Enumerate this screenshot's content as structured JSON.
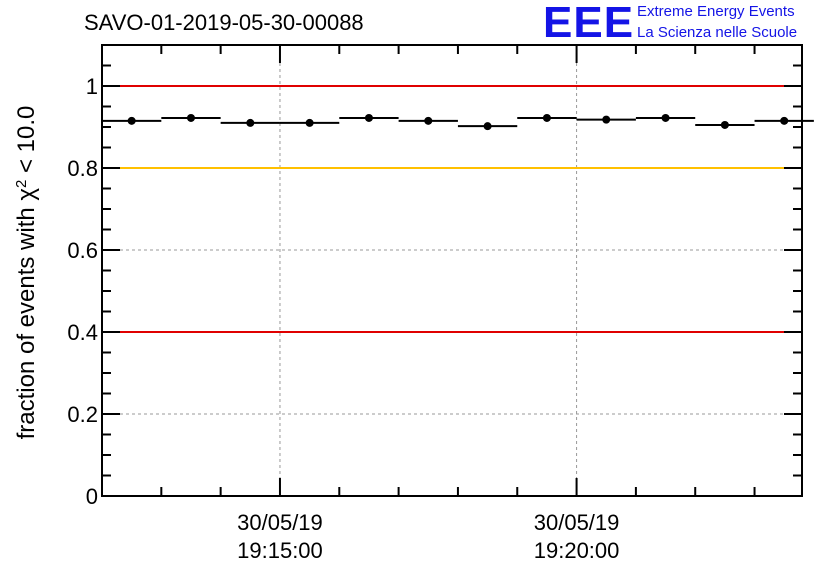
{
  "chart_data": {
    "type": "scatter",
    "title": "SAVO-01-2019-05-30-00088",
    "ylabel_prefix": "fraction of events with χ",
    "ylabel_superscript": "2",
    "ylabel_suffix": " < 10.0",
    "xlabel": "",
    "ylim": [
      0,
      1.1
    ],
    "yticks": [
      0,
      0.2,
      0.4,
      0.6,
      0.8,
      1
    ],
    "ytick_labels": [
      "0",
      "0.2",
      "0.4",
      "0.6",
      "0.8",
      "1"
    ],
    "xlim_minutes": [
      -3.0,
      8.8
    ],
    "xtick_labels": [
      {
        "minute": 0,
        "date": "30/05/19",
        "time": "19:15:00"
      },
      {
        "minute": 5,
        "date": "30/05/19",
        "time": "19:20:00"
      }
    ],
    "bin_halfwidth_minutes": 0.5,
    "x_minutes": [
      -2.5,
      -1.5,
      -0.5,
      0.5,
      1.5,
      2.5,
      3.5,
      4.5,
      5.5,
      6.5,
      7.5,
      8.5
    ],
    "values": [
      0.915,
      0.922,
      0.91,
      0.91,
      0.922,
      0.915,
      0.902,
      0.922,
      0.918,
      0.922,
      0.905,
      0.915
    ],
    "reference_lines": [
      {
        "y": 1.0,
        "color": "#e00000"
      },
      {
        "y": 0.8,
        "color": "#ffc000"
      },
      {
        "y": 0.4,
        "color": "#e00000"
      }
    ],
    "grid": true
  },
  "logo": {
    "mark": "EEE",
    "line1": "Extreme Energy Events",
    "line2": "La Scienza nelle Scuole"
  }
}
